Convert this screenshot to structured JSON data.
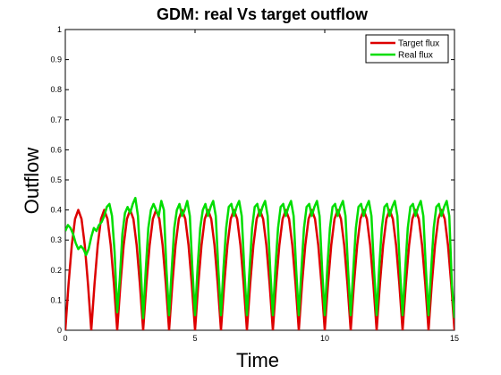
{
  "chart_data": {
    "type": "line",
    "title": "GDM: real Vs target outflow",
    "xlabel": "Time",
    "ylabel": "Outflow",
    "xlim": [
      0,
      15
    ],
    "ylim": [
      0,
      1
    ],
    "xticks": [
      "0",
      "5",
      "10",
      "15"
    ],
    "yticks": [
      "0",
      "0.1",
      "0.2",
      "0.3",
      "0.4",
      "0.5",
      "0.6",
      "0.7",
      "0.8",
      "0.9",
      "1"
    ],
    "grid": false,
    "legend_position": "top-right",
    "series": [
      {
        "name": "Target flux",
        "color": "#dd0000",
        "x": [
          0,
          0.125,
          0.25,
          0.375,
          0.5,
          0.625,
          0.75,
          0.875,
          1.0,
          1.125,
          1.25,
          1.375,
          1.5,
          1.625,
          1.75,
          1.875,
          2.0,
          2.125,
          2.25,
          2.375,
          2.5,
          2.625,
          2.75,
          2.875,
          3.0,
          3.125,
          3.25,
          3.375,
          3.5,
          3.625,
          3.75,
          3.875,
          4.0,
          4.125,
          4.25,
          4.375,
          4.5,
          4.625,
          4.75,
          4.875,
          5.0,
          5.125,
          5.25,
          5.375,
          5.5,
          5.625,
          5.75,
          5.875,
          6.0,
          6.125,
          6.25,
          6.375,
          6.5,
          6.625,
          6.75,
          6.875,
          7.0,
          7.125,
          7.25,
          7.375,
          7.5,
          7.625,
          7.75,
          7.875,
          8.0,
          8.125,
          8.25,
          8.375,
          8.5,
          8.625,
          8.75,
          8.875,
          9.0,
          9.125,
          9.25,
          9.375,
          9.5,
          9.625,
          9.75,
          9.875,
          10.0,
          10.125,
          10.25,
          10.375,
          10.5,
          10.625,
          10.75,
          10.875,
          11.0,
          11.125,
          11.25,
          11.375,
          11.5,
          11.625,
          11.75,
          11.875,
          12.0,
          12.125,
          12.25,
          12.375,
          12.5,
          12.625,
          12.75,
          12.875,
          13.0,
          13.125,
          13.25,
          13.375,
          13.5,
          13.625,
          13.75,
          13.875,
          14.0,
          14.125,
          14.25,
          14.375,
          14.5,
          14.625,
          14.75,
          14.875,
          15.0
        ],
        "y": [
          0.0,
          0.153,
          0.283,
          0.37,
          0.4,
          0.37,
          0.283,
          0.153,
          0.0,
          0.153,
          0.283,
          0.37,
          0.4,
          0.37,
          0.283,
          0.153,
          0.0,
          0.153,
          0.283,
          0.37,
          0.4,
          0.37,
          0.283,
          0.153,
          0.0,
          0.153,
          0.283,
          0.37,
          0.4,
          0.37,
          0.283,
          0.153,
          0.0,
          0.153,
          0.283,
          0.37,
          0.4,
          0.37,
          0.283,
          0.153,
          0.0,
          0.153,
          0.283,
          0.37,
          0.4,
          0.37,
          0.283,
          0.153,
          0.0,
          0.153,
          0.283,
          0.37,
          0.4,
          0.37,
          0.283,
          0.153,
          0.0,
          0.153,
          0.283,
          0.37,
          0.4,
          0.37,
          0.283,
          0.153,
          0.0,
          0.153,
          0.283,
          0.37,
          0.4,
          0.37,
          0.283,
          0.153,
          0.0,
          0.153,
          0.283,
          0.37,
          0.4,
          0.37,
          0.283,
          0.153,
          0.0,
          0.153,
          0.283,
          0.37,
          0.4,
          0.37,
          0.283,
          0.153,
          0.0,
          0.153,
          0.283,
          0.37,
          0.4,
          0.37,
          0.283,
          0.153,
          0.0,
          0.153,
          0.283,
          0.37,
          0.4,
          0.37,
          0.283,
          0.153,
          0.0,
          0.153,
          0.283,
          0.37,
          0.4,
          0.37,
          0.283,
          0.153,
          0.0,
          0.153,
          0.283,
          0.37,
          0.4,
          0.37,
          0.283,
          0.153,
          0.0
        ]
      },
      {
        "name": "Real flux",
        "color": "#00dd00",
        "x": [
          0,
          0.1,
          0.2,
          0.3,
          0.4,
          0.5,
          0.6,
          0.7,
          0.8,
          0.9,
          1.0,
          1.1,
          1.2,
          1.3,
          1.4,
          1.5,
          1.6,
          1.7,
          1.8,
          1.9,
          2.0,
          2.1,
          2.2,
          2.3,
          2.4,
          2.5,
          2.6,
          2.7,
          2.8,
          2.9,
          3.0,
          3.1,
          3.2,
          3.3,
          3.4,
          3.5,
          3.6,
          3.7,
          3.8,
          3.9,
          4.0,
          4.1,
          4.2,
          4.3,
          4.4,
          4.5,
          4.6,
          4.7,
          4.8,
          4.9,
          5.0,
          5.1,
          5.2,
          5.3,
          5.4,
          5.5,
          5.6,
          5.7,
          5.8,
          5.9,
          6.0,
          6.1,
          6.2,
          6.3,
          6.4,
          6.5,
          6.6,
          6.7,
          6.8,
          6.9,
          7.0,
          7.1,
          7.2,
          7.3,
          7.4,
          7.5,
          7.6,
          7.7,
          7.8,
          7.9,
          8.0,
          8.1,
          8.2,
          8.3,
          8.4,
          8.5,
          8.6,
          8.7,
          8.8,
          8.9,
          9.0,
          9.1,
          9.2,
          9.3,
          9.4,
          9.5,
          9.6,
          9.7,
          9.8,
          9.9,
          10.0,
          10.1,
          10.2,
          10.3,
          10.4,
          10.5,
          10.6,
          10.7,
          10.8,
          10.9,
          11.0,
          11.1,
          11.2,
          11.3,
          11.4,
          11.5,
          11.6,
          11.7,
          11.8,
          11.9,
          12.0,
          12.1,
          12.2,
          12.3,
          12.4,
          12.5,
          12.6,
          12.7,
          12.8,
          12.9,
          13.0,
          13.1,
          13.2,
          13.3,
          13.4,
          13.5,
          13.6,
          13.7,
          13.8,
          13.9,
          14.0,
          14.1,
          14.2,
          14.3,
          14.4,
          14.5,
          14.6,
          14.7,
          14.8,
          14.9,
          15.0
        ],
        "y": [
          0.33,
          0.35,
          0.34,
          0.32,
          0.29,
          0.27,
          0.28,
          0.27,
          0.25,
          0.27,
          0.31,
          0.34,
          0.33,
          0.35,
          0.36,
          0.38,
          0.41,
          0.42,
          0.38,
          0.26,
          0.06,
          0.17,
          0.32,
          0.39,
          0.41,
          0.39,
          0.42,
          0.44,
          0.38,
          0.22,
          0.04,
          0.2,
          0.34,
          0.4,
          0.42,
          0.4,
          0.38,
          0.43,
          0.4,
          0.2,
          0.05,
          0.2,
          0.34,
          0.4,
          0.42,
          0.38,
          0.4,
          0.43,
          0.38,
          0.2,
          0.05,
          0.21,
          0.34,
          0.4,
          0.42,
          0.38,
          0.41,
          0.43,
          0.38,
          0.2,
          0.05,
          0.21,
          0.34,
          0.41,
          0.42,
          0.38,
          0.41,
          0.43,
          0.38,
          0.2,
          0.05,
          0.2,
          0.34,
          0.41,
          0.42,
          0.38,
          0.41,
          0.43,
          0.38,
          0.2,
          0.05,
          0.21,
          0.34,
          0.41,
          0.42,
          0.38,
          0.41,
          0.43,
          0.38,
          0.2,
          0.05,
          0.2,
          0.34,
          0.41,
          0.42,
          0.38,
          0.41,
          0.43,
          0.38,
          0.2,
          0.05,
          0.21,
          0.34,
          0.41,
          0.42,
          0.38,
          0.41,
          0.43,
          0.38,
          0.2,
          0.05,
          0.2,
          0.34,
          0.41,
          0.42,
          0.38,
          0.41,
          0.43,
          0.38,
          0.2,
          0.05,
          0.21,
          0.34,
          0.41,
          0.42,
          0.38,
          0.41,
          0.43,
          0.38,
          0.2,
          0.05,
          0.2,
          0.34,
          0.41,
          0.42,
          0.38,
          0.41,
          0.43,
          0.38,
          0.2,
          0.05,
          0.2,
          0.34,
          0.41,
          0.42,
          0.38,
          0.41,
          0.43,
          0.38,
          0.15,
          0.04
        ]
      }
    ],
    "legend": [
      {
        "label": "Target flux",
        "color": "#dd0000"
      },
      {
        "label": "Real flux",
        "color": "#00dd00"
      }
    ]
  }
}
